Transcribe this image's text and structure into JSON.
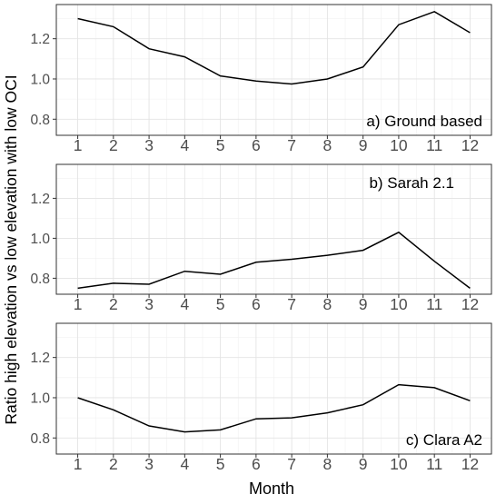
{
  "chart_data": {
    "type": "line",
    "ylabel": "Ratio high elevation vs low elevation with low OCI",
    "xlabel": "Month",
    "x": [
      1,
      2,
      3,
      4,
      5,
      6,
      7,
      8,
      9,
      10,
      11,
      12
    ],
    "x_tick_labels": [
      "1",
      "2",
      "3",
      "4",
      "5",
      "6",
      "7",
      "8",
      "9",
      "10",
      "11",
      "12"
    ],
    "y_tick_labels": [
      "0.8",
      "1.0",
      "1.2"
    ],
    "y_ticks": [
      0.8,
      1.0,
      1.2
    ],
    "ylim": [
      0.72,
      1.37
    ],
    "xlim": [
      0.4,
      12.6
    ],
    "grid": true,
    "line_color": "#000000",
    "panels": [
      {
        "label": "a) Ground based",
        "label_position": "bottom-right",
        "values": [
          1.3,
          1.26,
          1.15,
          1.11,
          1.015,
          0.99,
          0.975,
          1.0,
          1.06,
          1.27,
          1.335,
          1.23
        ]
      },
      {
        "label": "b) Sarah 2.1",
        "label_position": "top-right",
        "values": [
          0.75,
          0.775,
          0.77,
          0.835,
          0.82,
          0.88,
          0.895,
          0.915,
          0.94,
          1.03,
          0.885,
          0.75
        ]
      },
      {
        "label": "c) Clara A2",
        "label_position": "bottom-right",
        "values": [
          1.0,
          0.94,
          0.86,
          0.83,
          0.84,
          0.895,
          0.9,
          0.925,
          0.965,
          1.065,
          1.05,
          0.985
        ]
      }
    ]
  }
}
